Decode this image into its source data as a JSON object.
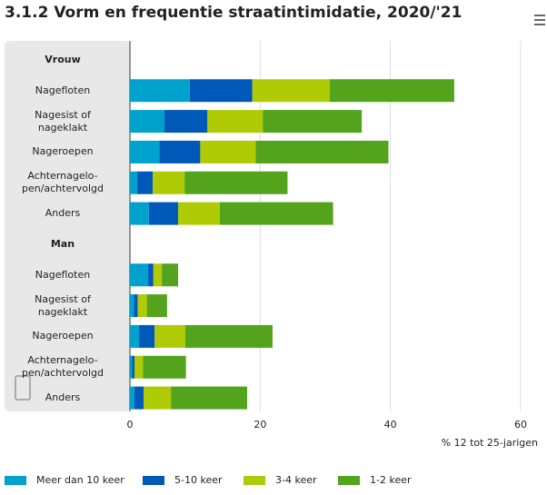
{
  "chart_data": {
    "type": "bar",
    "orientation": "horizontal",
    "stacked": true,
    "title": "3.1.2 Vorm en frequentie straatintimidatie, 2020/'21",
    "xlabel": "% 12 tot 25-jarigen",
    "categories": [
      "Vrouw",
      "Nagefloten",
      "Nagesist of\nnageklakt",
      "Nageroepen",
      "Achternagelo-\npen/achtervolgd",
      "Anders",
      "Man",
      "Nagefloten",
      "Nagesist of\nnageklakt",
      "Nageroepen",
      "Achternagelo-\npen/achtervolgd",
      "Anders"
    ],
    "series": [
      {
        "name": "Meer dan 10 keer",
        "color": "#00a1cd",
        "values": [
          null,
          9.2,
          5.3,
          4.5,
          1.1,
          2.9,
          null,
          2.8,
          0.6,
          1.4,
          0.3,
          0.7
        ]
      },
      {
        "name": "5-10 keer",
        "color": "#0058b8",
        "values": [
          null,
          9.6,
          6.6,
          6.3,
          2.4,
          4.5,
          null,
          0.8,
          0.6,
          2.4,
          0.4,
          1.4
        ]
      },
      {
        "name": "3-4 keer",
        "color": "#afcb05",
        "values": [
          null,
          11.9,
          8.5,
          8.5,
          4.9,
          6.4,
          null,
          1.3,
          1.4,
          4.7,
          1.3,
          4.2
        ]
      },
      {
        "name": "1-2 keer",
        "color": "#53a31d",
        "values": [
          null,
          19.1,
          15.2,
          20.4,
          15.8,
          17.4,
          null,
          2.5,
          3.1,
          13.4,
          6.6,
          11.7
        ]
      }
    ],
    "xlim": [
      0,
      60
    ],
    "xticks": [
      0,
      20,
      40,
      60
    ],
    "grid": true,
    "legend": "bottom"
  }
}
